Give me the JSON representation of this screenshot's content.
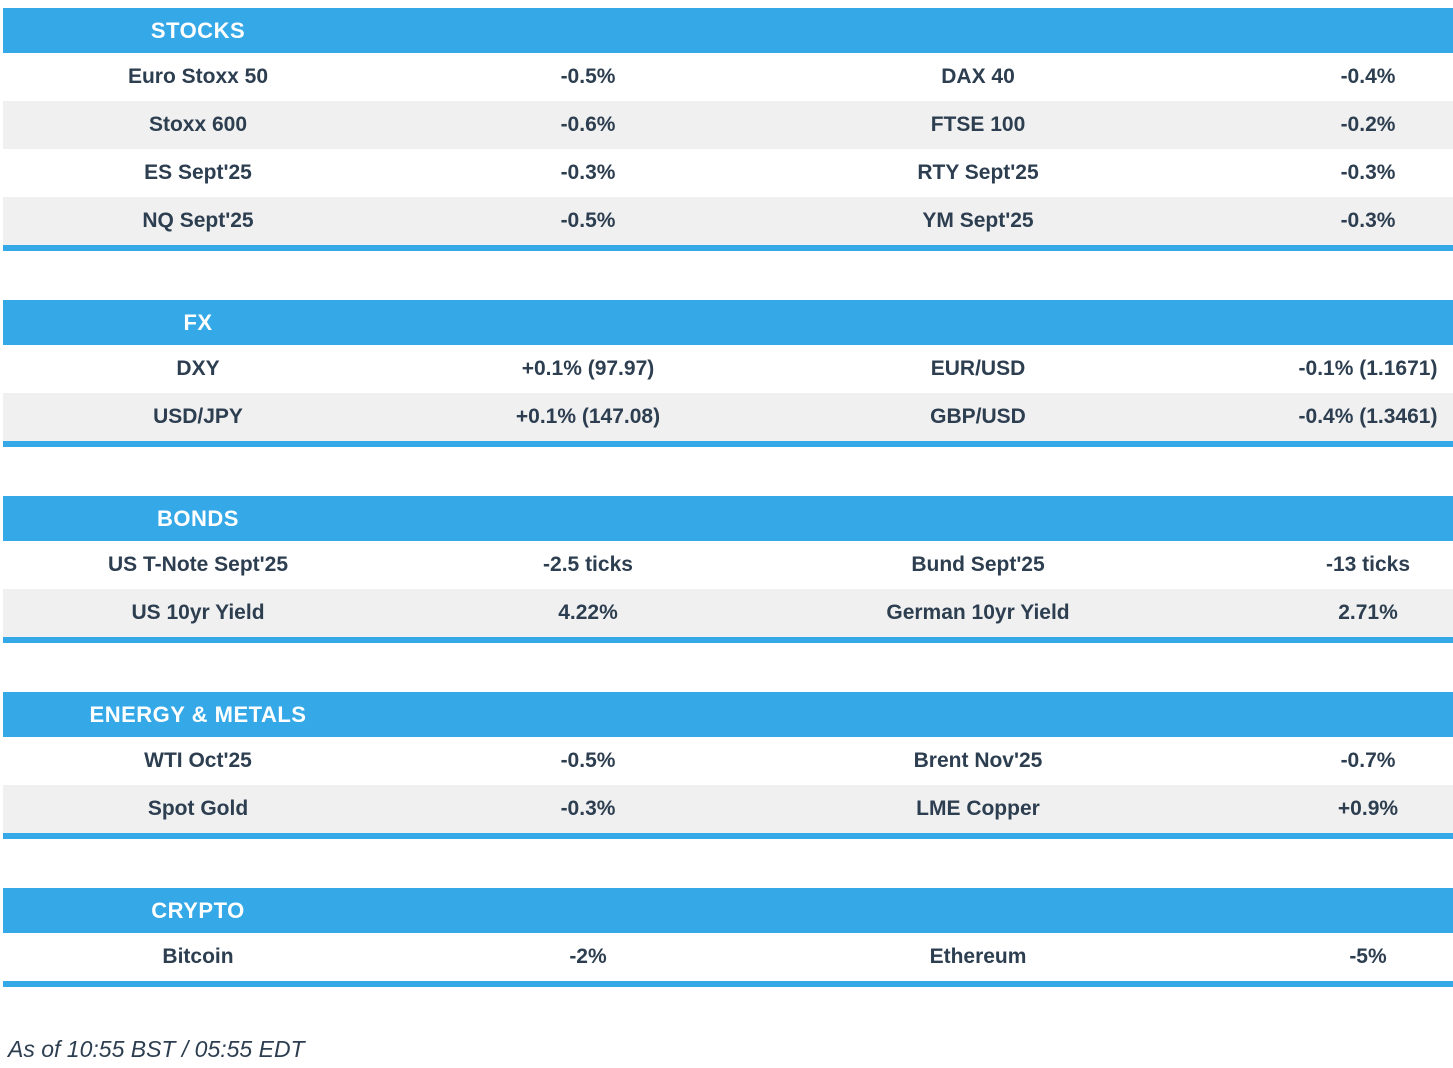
{
  "colors": {
    "accent": "#35a8e8",
    "text": "#2c3e50",
    "row_alt": "#f0f0f0",
    "header_text": "#ffffff"
  },
  "sections": [
    {
      "id": "stocks",
      "title": "STOCKS",
      "rows": [
        [
          {
            "label": "Euro Stoxx 50",
            "value": "-0.5%"
          },
          {
            "label": "DAX 40",
            "value": "-0.4%"
          }
        ],
        [
          {
            "label": "Stoxx 600",
            "value": "-0.6%"
          },
          {
            "label": "FTSE 100",
            "value": "-0.2%"
          }
        ],
        [
          {
            "label": "ES Sept'25",
            "value": "-0.3%"
          },
          {
            "label": "RTY Sept'25",
            "value": "-0.3%"
          }
        ],
        [
          {
            "label": "NQ Sept'25",
            "value": "-0.5%"
          },
          {
            "label": "YM Sept'25",
            "value": "-0.3%"
          }
        ]
      ]
    },
    {
      "id": "fx",
      "title": "FX",
      "rows": [
        [
          {
            "label": "DXY",
            "value": "+0.1% (97.97)"
          },
          {
            "label": "EUR/USD",
            "value": "-0.1% (1.1671)"
          }
        ],
        [
          {
            "label": "USD/JPY",
            "value": "+0.1% (147.08)"
          },
          {
            "label": "GBP/USD",
            "value": "-0.4% (1.3461)"
          }
        ]
      ]
    },
    {
      "id": "bonds",
      "title": "BONDS",
      "rows": [
        [
          {
            "label": "US T-Note Sept'25",
            "value": "-2.5 ticks"
          },
          {
            "label": "Bund Sept'25",
            "value": "-13 ticks"
          }
        ],
        [
          {
            "label": "US 10yr Yield",
            "value": "4.22%"
          },
          {
            "label": "German 10yr Yield",
            "value": "2.71%"
          }
        ]
      ]
    },
    {
      "id": "energy-metals",
      "title": "ENERGY & METALS",
      "rows": [
        [
          {
            "label": "WTI Oct'25",
            "value": "-0.5%"
          },
          {
            "label": "Brent Nov'25",
            "value": "-0.7%"
          }
        ],
        [
          {
            "label": "Spot Gold",
            "value": "-0.3%"
          },
          {
            "label": "LME Copper",
            "value": "+0.9%"
          }
        ]
      ]
    },
    {
      "id": "crypto",
      "title": "CRYPTO",
      "rows": [
        [
          {
            "label": "Bitcoin",
            "value": "-2%"
          },
          {
            "label": "Ethereum",
            "value": "-5%"
          }
        ]
      ]
    }
  ],
  "footer": {
    "as_of": "As of 10:55 BST / 05:55 EDT"
  }
}
